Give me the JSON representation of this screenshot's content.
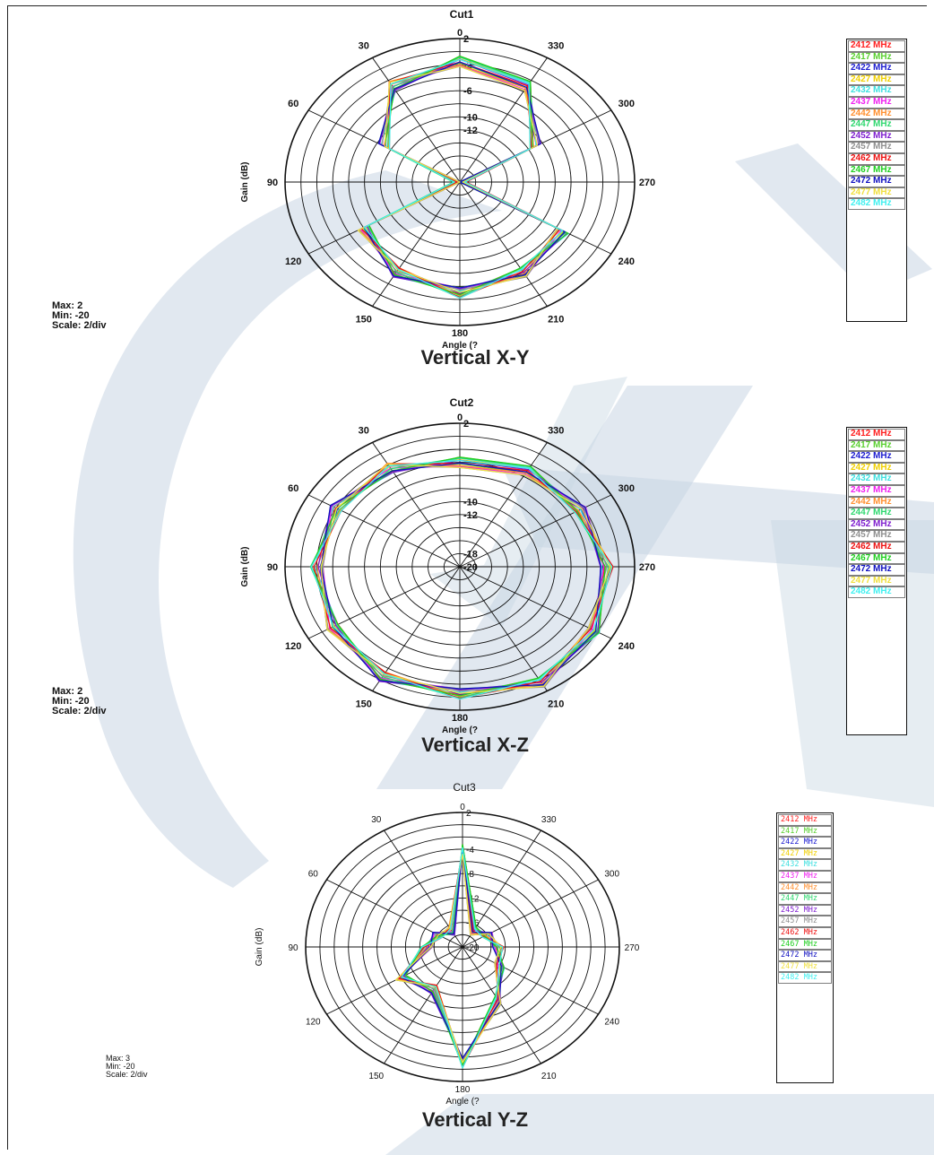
{
  "colors": {
    "watermark": "#c8d6e3",
    "series": [
      "#ff2020",
      "#5ad030",
      "#1c1cd0",
      "#f0d000",
      "#40e0e0",
      "#f020f0",
      "#ff9030",
      "#30d870",
      "#8020d0",
      "#909090",
      "#ee1111",
      "#20d020",
      "#1010c0",
      "#f0e040",
      "#40f0f0"
    ]
  },
  "legend_labels": [
    "2412 MHz",
    "2417 MHz",
    "2422 MHz",
    "2427 MHz",
    "2432 MHz",
    "2437 MHz",
    "2442 MHz",
    "2447 MHz",
    "2452 MHz",
    "2457 MHz",
    "2462 MHz",
    "2467 MHz",
    "2472 MHz",
    "2477 MHz",
    "2482 MHz"
  ],
  "angle_labels": [
    "0",
    "30",
    "60",
    "90",
    "120",
    "150",
    "180",
    "210",
    "240",
    "270",
    "300",
    "330"
  ],
  "chart_data": [
    {
      "type": "radar",
      "title": "Cut1",
      "caption": "Vertical X-Y",
      "ylabel": "Gain (dB)",
      "xlabel": "Angle (?",
      "stats": [
        "Max: 2",
        "Min: -20",
        "Scale: 2/div"
      ],
      "rlim": [
        -20,
        2
      ],
      "r_ticks": [
        "2",
        "-2",
        "-6",
        "-10",
        "-12"
      ],
      "angles": [
        0,
        30,
        60,
        90,
        120,
        150,
        180,
        210,
        240,
        270,
        300,
        330
      ],
      "base": [
        -1.5,
        -3,
        -9,
        -20,
        -6,
        -4,
        -3,
        -4,
        -5,
        -20,
        -9,
        -3
      ]
    },
    {
      "type": "radar",
      "title": "Cut2",
      "caption": "Vertical X-Z",
      "ylabel": "Gain (dB)",
      "xlabel": "Angle (?",
      "stats": [
        "Max: 2",
        "Min: -20",
        "Scale: 2/div"
      ],
      "rlim": [
        -20,
        2
      ],
      "r_ticks": [
        "2",
        "-10",
        "-12",
        "-18",
        "-20"
      ],
      "angles": [
        0,
        30,
        60,
        90,
        120,
        150,
        180,
        210,
        240,
        270,
        300,
        330
      ],
      "base": [
        -4,
        -2.5,
        -2,
        -2,
        -1.5,
        -0.5,
        -0.5,
        0.5,
        -0.5,
        -1.5,
        -2.5,
        -3
      ]
    },
    {
      "type": "radar",
      "title": "Cut3",
      "caption": "Vertical Y-Z",
      "ylabel": "Gain (dB)",
      "xlabel": "Angle (?",
      "stats": [
        "Max: 3",
        "Min: -20",
        "Scale: 2/div"
      ],
      "rlim": [
        -20,
        2
      ],
      "r_ticks": [
        "2",
        "-4",
        "-8",
        "-12",
        "-16",
        "-20"
      ],
      "angles": [
        0,
        30,
        60,
        90,
        120,
        150,
        180,
        210,
        240,
        270,
        300,
        330
      ],
      "base": [
        -4,
        -17,
        -16,
        -15,
        -10,
        -12,
        -1,
        -10,
        -14,
        -15,
        -16,
        -17
      ]
    }
  ]
}
